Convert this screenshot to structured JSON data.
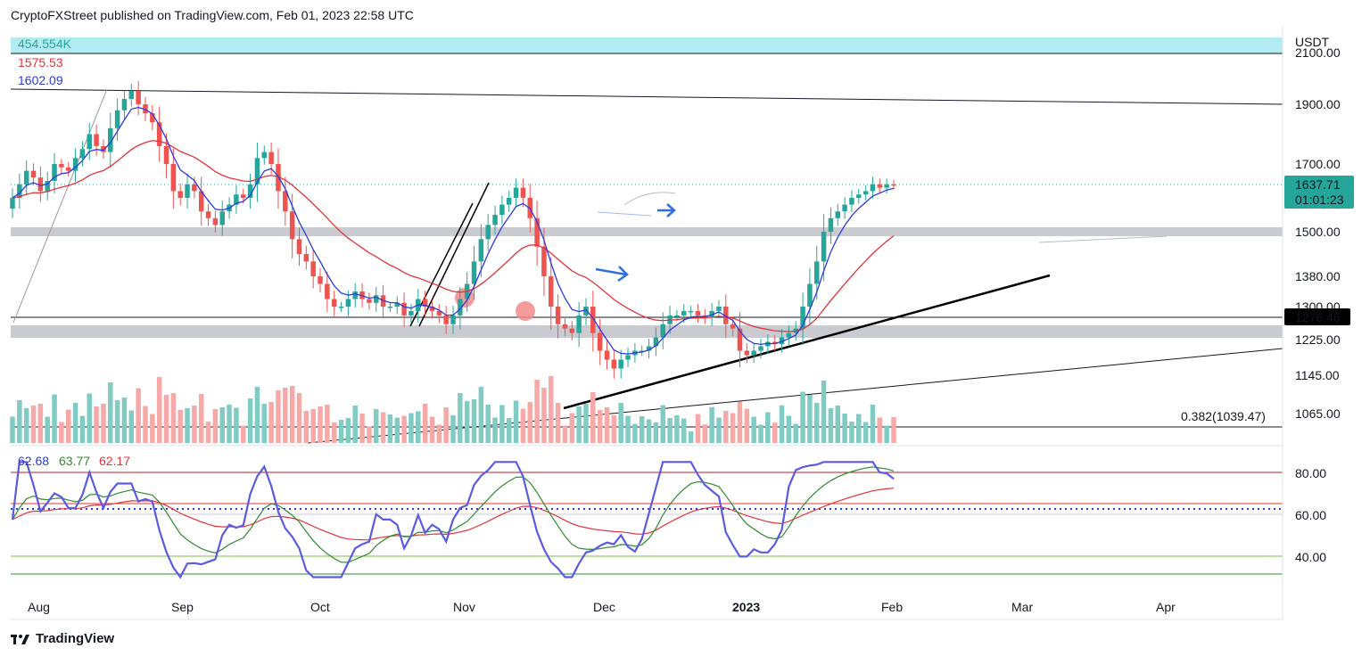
{
  "header": {
    "publisher_line": "CryptoFXStreet published on TradingView.com, Feb 01, 2023 22:58 UTC"
  },
  "footer": {
    "brand": "TradingView",
    "logo_icon": "tradingview-logo-icon"
  },
  "colors": {
    "up": "#26a69a",
    "down": "#ef5350",
    "volume_up": "#80cbc4",
    "volume_down": "#f7a9a7",
    "ma_fast": "#2d3adf",
    "ma_slow": "#e0343a",
    "rsi": "#5b5be0",
    "rsi_signal": "#2e8b2e",
    "rsi_slow": "#e0343a",
    "band": "#b2ebf2",
    "zone": "#c9cbd1"
  },
  "price_pane": {
    "currency": "USDT",
    "price_ticks": [
      "2100.00",
      "1900.00",
      "1700.00",
      "1500.00",
      "1380.00",
      "1300.00",
      "1225.00",
      "1145.00",
      "1065.00"
    ],
    "last_price": "1637.71",
    "countdown": "01:01:23",
    "marker_price": "1276.46",
    "legend_values": [
      "454.554K",
      "1575.53",
      "1602.09"
    ],
    "fib_label": "0.382(1039.47)"
  },
  "rsi_pane": {
    "legend_values": [
      "62.68",
      "63.77",
      "62.17"
    ],
    "ticks": [
      "80.00",
      "60.00",
      "40.00"
    ],
    "overbought": 80,
    "oversold": 30,
    "midline": 62.5
  },
  "time_axis": {
    "labels": [
      "Aug",
      "Sep",
      "Oct",
      "Nov",
      "Dec",
      "2023",
      "Feb",
      "Mar",
      "Apr"
    ]
  },
  "chart_data": {
    "type": "candlestick",
    "symbol_quote": "USDT",
    "x_labels": [
      "Aug",
      "Sep",
      "Oct",
      "Nov",
      "Dec",
      "2023",
      "Feb",
      "Mar",
      "Apr"
    ],
    "y_ticks": [
      2100,
      1900,
      1700,
      1500,
      1380,
      1300,
      1225,
      1145,
      1065
    ],
    "candles_close": [
      1600,
      1640,
      1680,
      1660,
      1620,
      1650,
      1700,
      1690,
      1680,
      1720,
      1750,
      1800,
      1760,
      1740,
      1820,
      1880,
      1920,
      1950,
      1900,
      1870,
      1840,
      1760,
      1700,
      1620,
      1600,
      1640,
      1620,
      1560,
      1540,
      1520,
      1560,
      1580,
      1610,
      1600,
      1640,
      1720,
      1740,
      1700,
      1620,
      1560,
      1480,
      1440,
      1420,
      1380,
      1360,
      1320,
      1300,
      1300,
      1320,
      1340,
      1320,
      1310,
      1330,
      1300,
      1300,
      1310,
      1280,
      1290,
      1320,
      1300,
      1290,
      1280,
      1260,
      1280,
      1320,
      1360,
      1420,
      1480,
      1520,
      1550,
      1580,
      1600,
      1630,
      1600,
      1540,
      1460,
      1380,
      1300,
      1260,
      1250,
      1240,
      1280,
      1300,
      1240,
      1200,
      1180,
      1160,
      1180,
      1190,
      1200,
      1200,
      1210,
      1230,
      1260,
      1280,
      1280,
      1290,
      1290,
      1280,
      1275,
      1290,
      1300,
      1260,
      1250,
      1200,
      1190,
      1200,
      1210,
      1220,
      1215,
      1230,
      1240,
      1250,
      1300,
      1360,
      1420,
      1500,
      1540,
      1560,
      1580,
      1600,
      1610,
      1620,
      1640,
      1630,
      1640,
      1638
    ],
    "ema_fast_last": 1602.09,
    "ema_slow_last": 1575.53,
    "volume_last": "454.554K",
    "fib_level": {
      "ratio": 0.382,
      "price": 1039.47
    },
    "rsi_last": 62.68,
    "rsi_signal_last": 63.77,
    "rsi_slow_last": 62.17
  }
}
